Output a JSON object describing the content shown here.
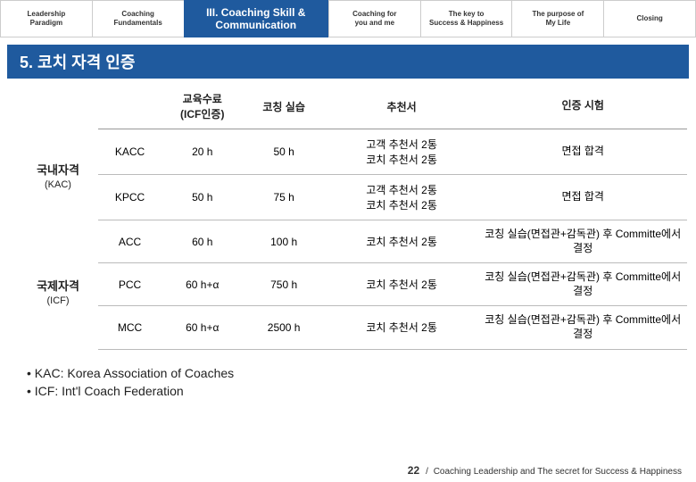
{
  "tabs": [
    {
      "label": "Leadership\nParadigm",
      "active": false
    },
    {
      "label": "Coaching\nFundamentals",
      "active": false
    },
    {
      "label": "III. Coaching Skill &\nCommunication",
      "active": true
    },
    {
      "label": "Coaching for\nyou and me",
      "active": false
    },
    {
      "label": "The key to\nSuccess & Happiness",
      "active": false
    },
    {
      "label": "The purpose of\nMy Life",
      "active": false
    },
    {
      "label": "Closing",
      "active": false
    }
  ],
  "title": "5.  코치 자격 인증",
  "headers": [
    "",
    "교육수료\n(ICF인증)",
    "코칭 실습",
    "추천서",
    "인증 시험"
  ],
  "groups": [
    {
      "name": "국내자격",
      "sub": "(KAC)",
      "rows": [
        {
          "c": [
            "KACC",
            "20 h",
            "50 h",
            "고객 추천서 2통\n코치 추천서 2통",
            "면접 합격"
          ]
        },
        {
          "c": [
            "KPCC",
            "50 h",
            "75 h",
            "고객 추천서 2통\n코치 추천서 2통",
            "면접 합격"
          ]
        }
      ]
    },
    {
      "name": "국제자격",
      "sub": "(ICF)",
      "rows": [
        {
          "c": [
            "ACC",
            "60 h",
            "100 h",
            "코치 추천서 2통",
            "코칭 실습(면접관+감독관) 후 Committe에서 결정"
          ]
        },
        {
          "c": [
            "PCC",
            "60 h+α",
            "750 h",
            "코치 추천서 2통",
            "코칭 실습(면접관+감독관) 후 Committe에서 결정"
          ]
        },
        {
          "c": [
            "MCC",
            "60 h+α",
            "2500 h",
            "코치 추천서 2통",
            "코칭 실습(면접관+감독관) 후 Committe에서 결정"
          ]
        }
      ]
    }
  ],
  "footnotes": [
    "•  KAC: Korea Association of Coaches",
    "•  ICF: Int'l Coach Federation"
  ],
  "footer": {
    "page": "22",
    "sep": "/",
    "text": "Coaching Leadership and The secret for Success & Happiness"
  }
}
